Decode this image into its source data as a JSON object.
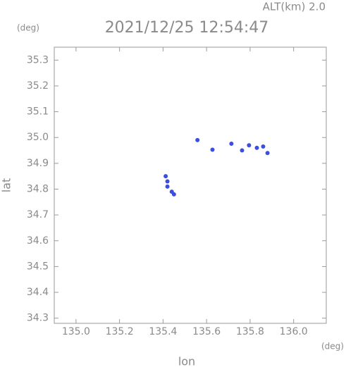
{
  "chart_data": {
    "type": "scatter",
    "title": "2021/12/25 12:54:47",
    "subtitle": "ALT(km) 2.0",
    "y_unit": "(deg)",
    "x_unit": "(deg)",
    "x_label": "lon",
    "y_label": "lat",
    "x": [
      135.558,
      135.627,
      135.714,
      135.763,
      135.795,
      135.831,
      135.86,
      135.88,
      135.412,
      135.42,
      135.42,
      135.44,
      135.45
    ],
    "values": [
      34.99,
      34.953,
      34.976,
      34.95,
      34.97,
      34.96,
      34.965,
      34.94,
      34.85,
      34.83,
      34.81,
      34.79,
      34.78
    ],
    "color": "#3a4fe0",
    "xlim": [
      134.9,
      136.15
    ],
    "ylim": [
      34.28,
      35.35
    ],
    "xticks": [
      {
        "value": 135,
        "label": "135.0"
      },
      135.2,
      135.4,
      135.6,
      135.8,
      {
        "value": 136,
        "label": "136.0"
      }
    ],
    "yticks": [
      34.3,
      34.4,
      34.5,
      34.6,
      34.7,
      34.8,
      34.9,
      {
        "value": 35,
        "label": "35.0"
      },
      35.1,
      35.2,
      35.3
    ]
  }
}
